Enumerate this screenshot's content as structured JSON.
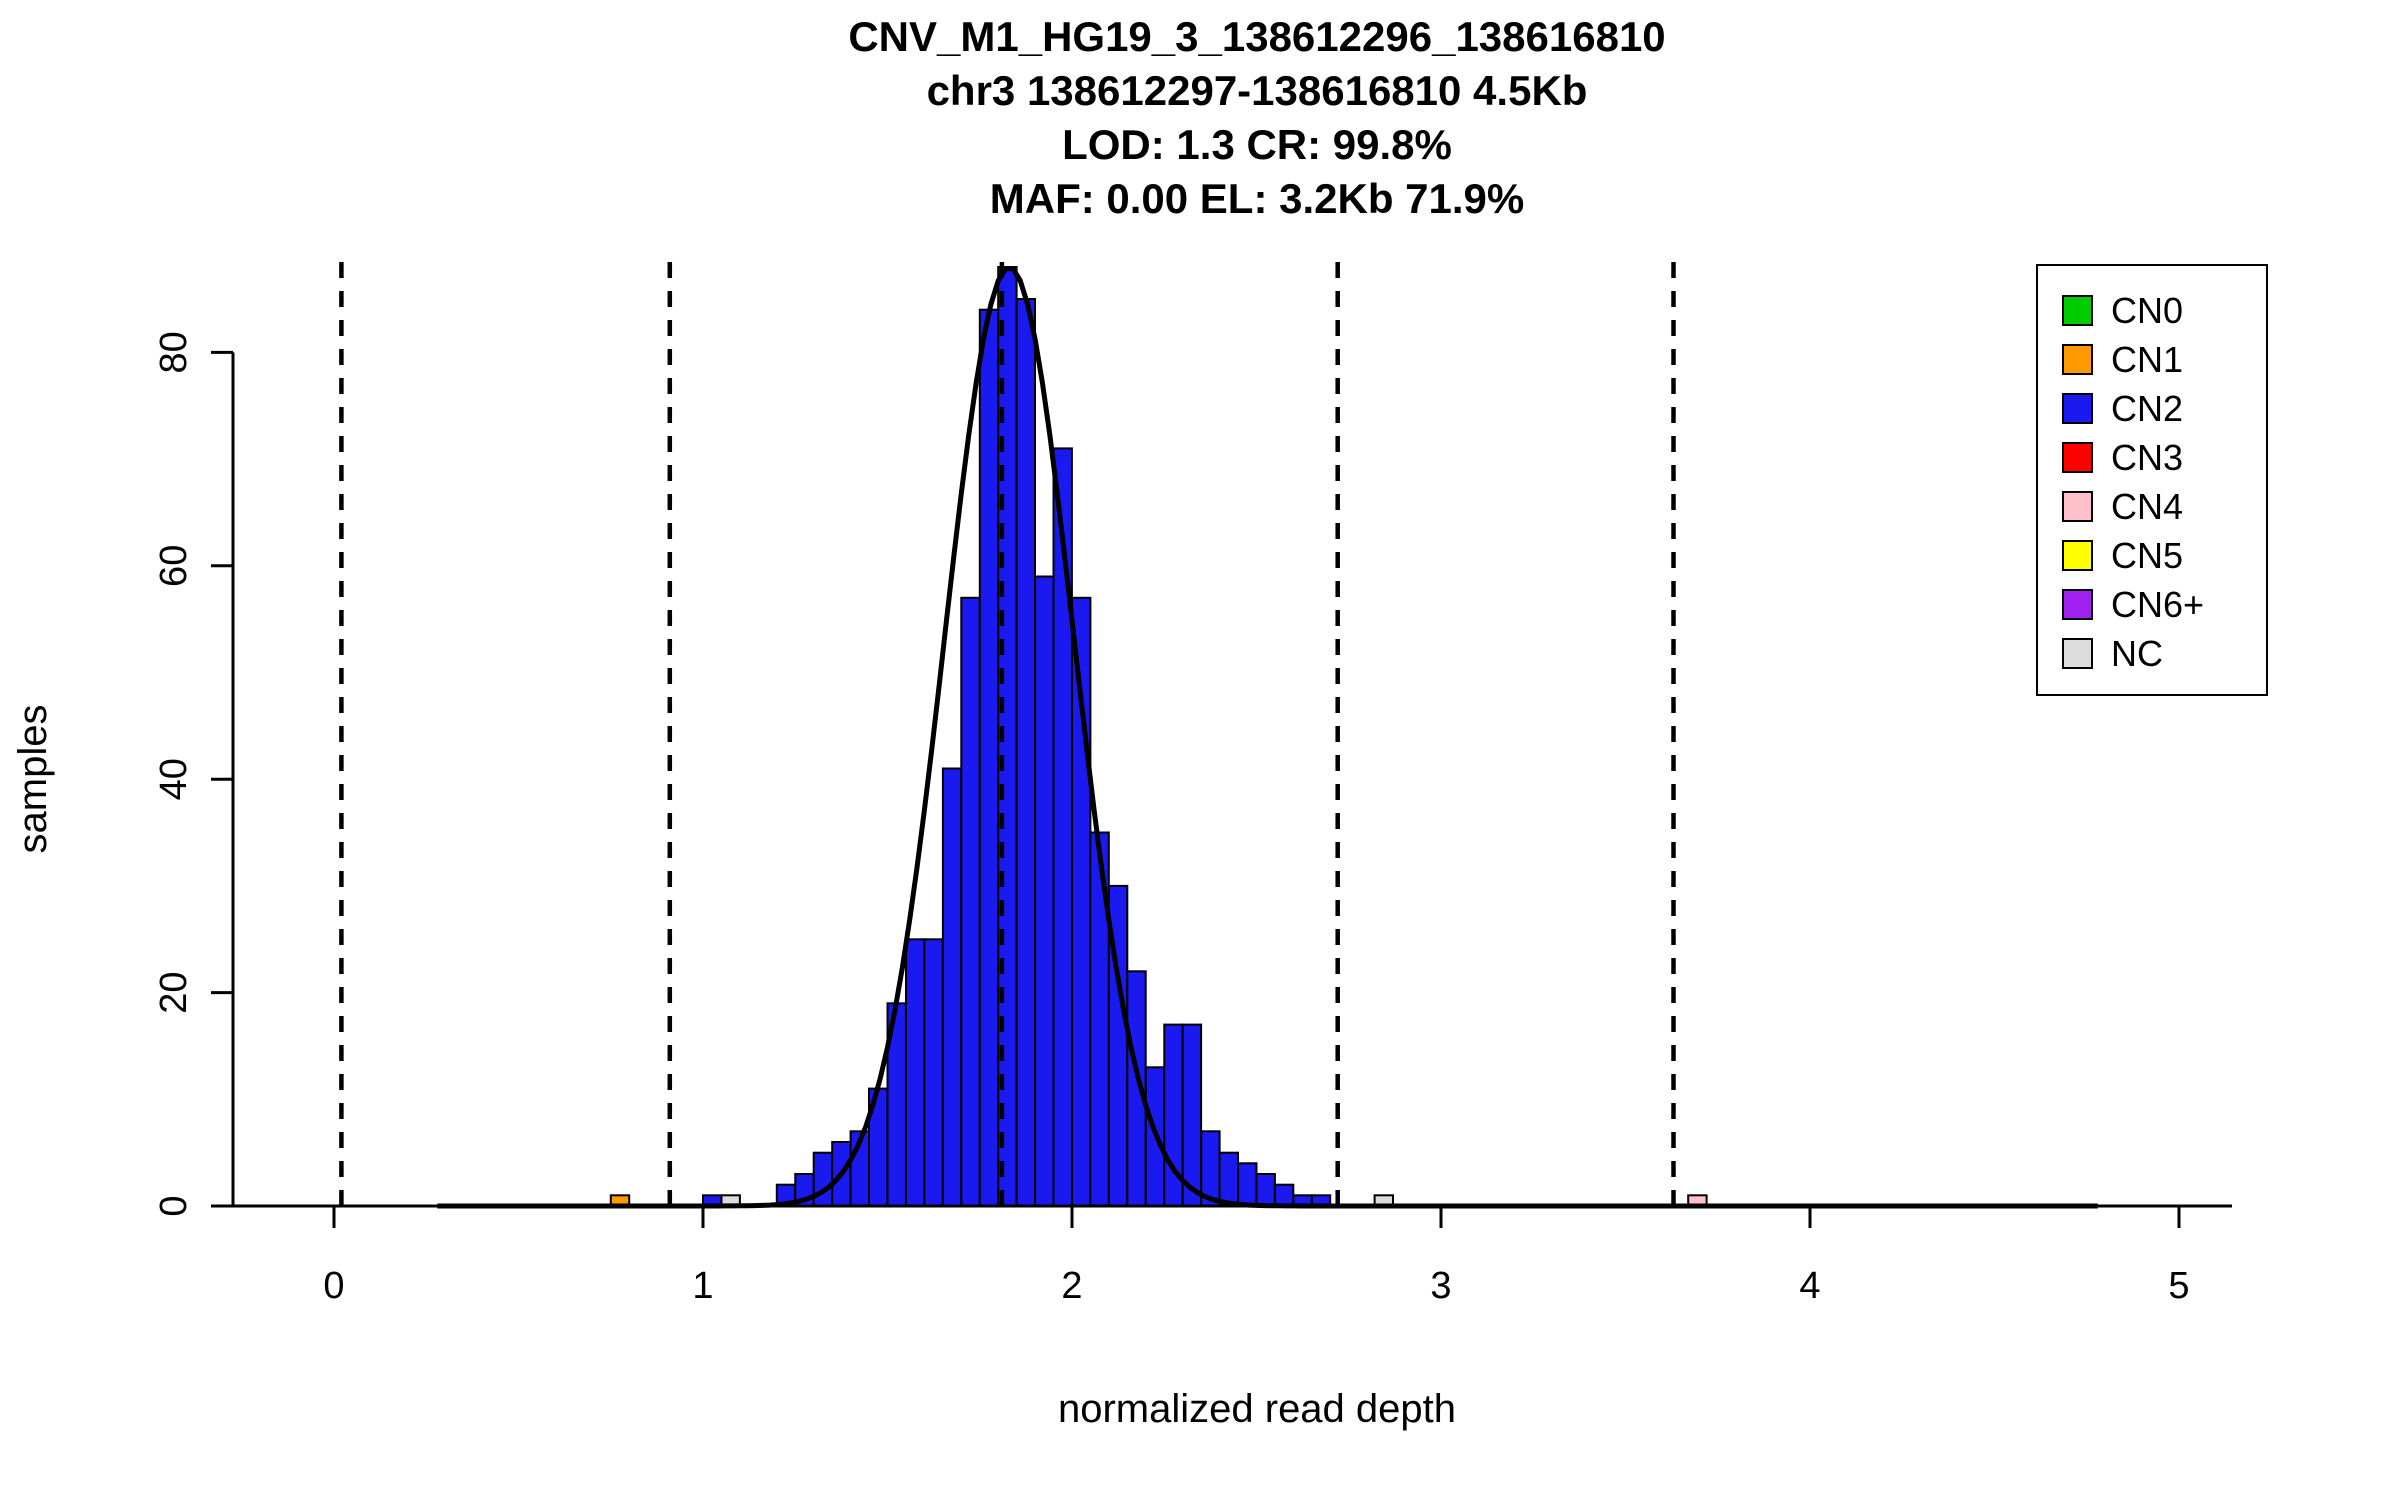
{
  "chart_data": {
    "type": "bar",
    "title": "CNV_M1_HG19_3_138612296_138616810",
    "subtitle": "chr3 138612297-138616810 4.5Kb",
    "stats_line1": "LOD: 1.3 CR: 99.8%",
    "stats_line2": "MAF: 0.00 EL: 3.2Kb 71.9%",
    "xlabel": "normalized read depth",
    "ylabel": "samples",
    "x_ticks": [
      0,
      1,
      2,
      3,
      4,
      5
    ],
    "y_ticks": [
      0,
      20,
      40,
      60,
      80
    ],
    "xlim": [
      -0.25,
      5.15
    ],
    "ylim": [
      0,
      88
    ],
    "grid": false,
    "legend_position": "top-right",
    "bin_width": 0.05,
    "bars": [
      {
        "x": 0.75,
        "height": 1,
        "cn": "CN1"
      },
      {
        "x": 1.0,
        "height": 1,
        "cn": "CN2"
      },
      {
        "x": 1.05,
        "height": 1,
        "cn": "NC"
      },
      {
        "x": 1.2,
        "height": 2,
        "cn": "CN2"
      },
      {
        "x": 1.25,
        "height": 3,
        "cn": "CN2"
      },
      {
        "x": 1.3,
        "height": 5,
        "cn": "CN2"
      },
      {
        "x": 1.35,
        "height": 6,
        "cn": "CN2"
      },
      {
        "x": 1.4,
        "height": 7,
        "cn": "CN2"
      },
      {
        "x": 1.45,
        "height": 11,
        "cn": "CN2"
      },
      {
        "x": 1.5,
        "height": 19,
        "cn": "CN2"
      },
      {
        "x": 1.55,
        "height": 25,
        "cn": "CN2"
      },
      {
        "x": 1.6,
        "height": 25,
        "cn": "CN2"
      },
      {
        "x": 1.65,
        "height": 41,
        "cn": "CN2"
      },
      {
        "x": 1.7,
        "height": 57,
        "cn": "CN2"
      },
      {
        "x": 1.75,
        "height": 84,
        "cn": "CN2"
      },
      {
        "x": 1.8,
        "height": 88,
        "cn": "CN2"
      },
      {
        "x": 1.85,
        "height": 85,
        "cn": "CN2"
      },
      {
        "x": 1.9,
        "height": 59,
        "cn": "CN2"
      },
      {
        "x": 1.95,
        "height": 71,
        "cn": "CN2"
      },
      {
        "x": 2.0,
        "height": 57,
        "cn": "CN2"
      },
      {
        "x": 2.05,
        "height": 35,
        "cn": "CN2"
      },
      {
        "x": 2.1,
        "height": 30,
        "cn": "CN2"
      },
      {
        "x": 2.15,
        "height": 22,
        "cn": "CN2"
      },
      {
        "x": 2.2,
        "height": 13,
        "cn": "CN2"
      },
      {
        "x": 2.25,
        "height": 17,
        "cn": "CN2"
      },
      {
        "x": 2.3,
        "height": 17,
        "cn": "CN2"
      },
      {
        "x": 2.35,
        "height": 7,
        "cn": "CN2"
      },
      {
        "x": 2.4,
        "height": 5,
        "cn": "CN2"
      },
      {
        "x": 2.45,
        "height": 4,
        "cn": "CN2"
      },
      {
        "x": 2.5,
        "height": 3,
        "cn": "CN2"
      },
      {
        "x": 2.55,
        "height": 2,
        "cn": "CN2"
      },
      {
        "x": 2.6,
        "height": 1,
        "cn": "CN2"
      },
      {
        "x": 2.65,
        "height": 1,
        "cn": "CN2"
      },
      {
        "x": 2.82,
        "height": 1,
        "cn": "NC"
      },
      {
        "x": 3.67,
        "height": 1,
        "cn": "CN4"
      }
    ],
    "dashed_lines_x": [
      0.02,
      0.91,
      1.81,
      2.72,
      3.63
    ],
    "fit_curve": {
      "type": "gaussian",
      "mean": 1.83,
      "sd": 0.175,
      "peak": 88,
      "x_range": [
        0.28,
        4.78
      ]
    },
    "legend": [
      {
        "label": "CN0",
        "color": "#00CC00"
      },
      {
        "label": "CN1",
        "color": "#FF9900"
      },
      {
        "label": "CN2",
        "color": "#1A1AF0"
      },
      {
        "label": "CN3",
        "color": "#FF0000"
      },
      {
        "label": "CN4",
        "color": "#FFC0CB"
      },
      {
        "label": "CN5",
        "color": "#FFFF00"
      },
      {
        "label": "CN6+",
        "color": "#A020F0"
      },
      {
        "label": "NC",
        "color": "#DCDCDC"
      }
    ],
    "colors": {
      "CN0": "#00CC00",
      "CN1": "#FF9900",
      "CN2": "#1A1AF0",
      "CN3": "#FF0000",
      "CN4": "#FFC0CB",
      "CN5": "#FFFF00",
      "CN6+": "#A020F0",
      "NC": "#DCDCDC"
    },
    "axis_color": "#000000",
    "curve_color": "#000000",
    "background": "#FFFFFF"
  }
}
